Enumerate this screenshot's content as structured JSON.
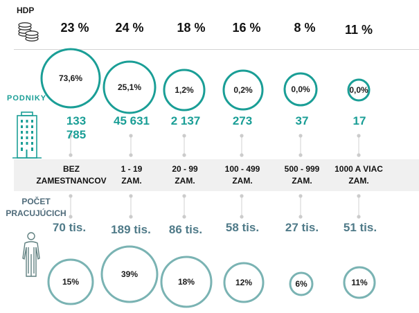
{
  "colors": {
    "teal": "#1a9e96",
    "teal_light": "#7ab3b3",
    "dark_text": "#111111",
    "slate_text": "#4f7a88",
    "band_grey": "#f0f0f0",
    "connector_grey": "#cccccc"
  },
  "header": {
    "hdp_label": "HDP",
    "icon": "coins-icon"
  },
  "enterprises": {
    "label": "PODNIKY",
    "icon": "building-icon"
  },
  "workers": {
    "label_line1": "POČET",
    "label_line2": "PRACUJÚCICH",
    "icon": "person-icon"
  },
  "chart_data": {
    "type": "table",
    "title": "",
    "categories": [
      {
        "line1": "BEZ",
        "line2": "ZAMESTNANCOV"
      },
      {
        "line1": "1 - 19",
        "line2": "ZAM."
      },
      {
        "line1": "20 - 99",
        "line2": "ZAM."
      },
      {
        "line1": "100 - 499",
        "line2": "ZAM."
      },
      {
        "line1": "500 - 999",
        "line2": "ZAM."
      },
      {
        "line1": "1000  A VIAC",
        "line2": "ZAM."
      }
    ],
    "series": [
      {
        "name": "HDP",
        "values": [
          23,
          24,
          18,
          16,
          8,
          11
        ],
        "labels": [
          "23 %",
          "24 %",
          "18 %",
          "16 %",
          "8 %",
          "11 %"
        ]
      },
      {
        "name": "PODNIKY share",
        "values": [
          73.6,
          25.1,
          1.2,
          0.2,
          0.0,
          0.0
        ],
        "labels": [
          "73,6%",
          "25,1%",
          "1,2%",
          "0,2%",
          "0,0%",
          "0,0%"
        ]
      },
      {
        "name": "PODNIKY count",
        "values": [
          133785,
          45631,
          2137,
          273,
          37,
          17
        ],
        "labels": [
          "133\n785",
          "45 631",
          "2 137",
          "273",
          "37",
          "17"
        ]
      },
      {
        "name": "POČET PRACUJÚCICH",
        "values": [
          70,
          189,
          86,
          58,
          27,
          51
        ],
        "labels": [
          "70 tis.",
          "189 tis.",
          "86 tis.",
          "58 tis.",
          "27 tis.",
          "51 tis."
        ]
      },
      {
        "name": "POČET PRACUJÚCICH share",
        "values": [
          15,
          39,
          18,
          12,
          6,
          11
        ],
        "labels": [
          "15%",
          "39%",
          "18%",
          "12%",
          "6%",
          "11%"
        ]
      }
    ]
  }
}
